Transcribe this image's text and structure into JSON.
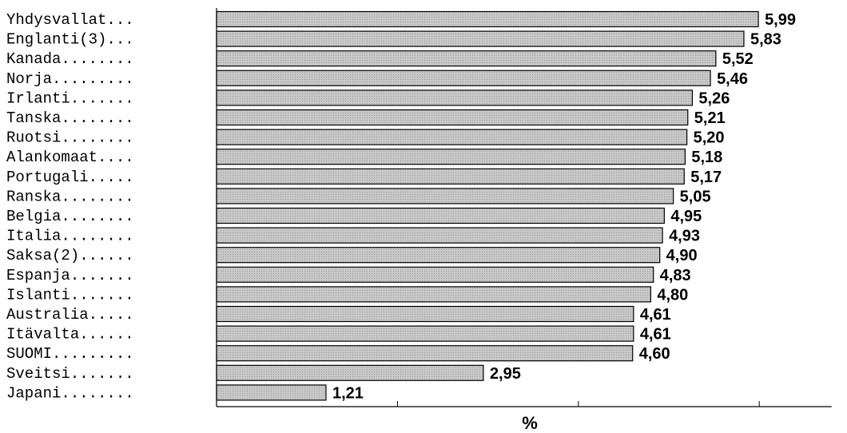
{
  "chart_data": {
    "type": "bar",
    "orientation": "horizontal",
    "categories": [
      "Yhdysvallat...",
      "Englanti(3)...",
      "Kanada........",
      "Norja.........",
      "Irlanti.......",
      "Tanska........",
      "Ruotsi........",
      "Alankomaat....",
      "Portugali.....",
      "Ranska........",
      "Belgia........",
      "Italia........",
      "Saksa(2)......",
      "Espanja.......",
      "Islanti.......",
      "Australia.....",
      "Itävalta......",
      "SUOMI.........",
      "Sveitsi.......",
      "Japani........"
    ],
    "values": [
      5.99,
      5.83,
      5.52,
      5.46,
      5.26,
      5.21,
      5.2,
      5.18,
      5.17,
      5.05,
      4.95,
      4.93,
      4.9,
      4.83,
      4.8,
      4.61,
      4.61,
      4.6,
      2.95,
      1.21
    ],
    "value_labels": [
      "5,99",
      "5,83",
      "5,52",
      "5,46",
      "5,26",
      "5,21",
      "5,20",
      "5,18",
      "5,17",
      "5,05",
      "4,95",
      "4,93",
      "4,90",
      "4,83",
      "4,80",
      "4,61",
      "4,61",
      "4,60",
      "2,95",
      "1,21"
    ],
    "title": "",
    "xlabel": "%",
    "ylabel": "",
    "xlim": [
      0,
      6.8
    ],
    "xticks": [
      2,
      4,
      6
    ],
    "grid": false,
    "legend": "none",
    "bar_color": "#c8c8c8",
    "bar_edge_color": "#000000"
  }
}
